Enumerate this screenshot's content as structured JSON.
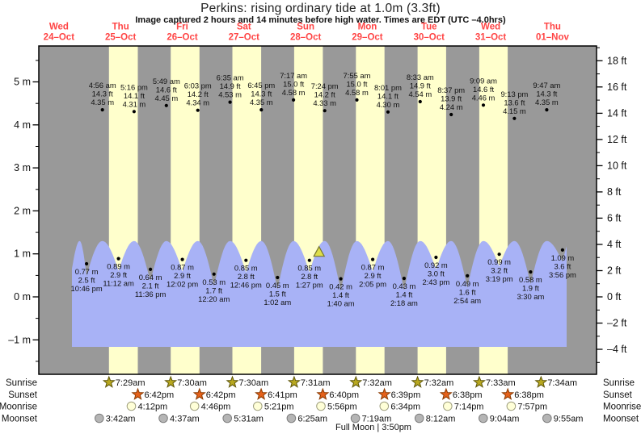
{
  "page": {
    "title": "Perkins: rising  ordinary tide at 1.0m (3.3ft)",
    "subtitle": "Image captured 2 hours and 14 minutes before high water. Times are EDT (UTC –4.0hrs)"
  },
  "colors": {
    "night_band": "#999999",
    "day_band": "#ffffcc",
    "water": "#a8b2f6",
    "day_label": "#ff4545",
    "sunrise_icon": "#b8a820",
    "sunset_icon": "#e5611a",
    "moonrise_icon": "#ffffd8",
    "moonset_icon": "#b5b5b5",
    "marker": "#dede4a",
    "annotation_text": "#111111"
  },
  "chart_data": {
    "type": "area",
    "title": "Perkins: rising  ordinary tide at 1.0m (3.3ft)",
    "subtitle": "Image captured 2 hours and 14 minutes before high water. Times are EDT (UTC –4.0hrs)",
    "days": [
      {
        "name": "Wed",
        "date": "24–Oct"
      },
      {
        "name": "Thu",
        "date": "25–Oct"
      },
      {
        "name": "Fri",
        "date": "26–Oct"
      },
      {
        "name": "Sat",
        "date": "27–Oct"
      },
      {
        "name": "Sun",
        "date": "28–Oct"
      },
      {
        "name": "Mon",
        "date": "29–Oct"
      },
      {
        "name": "Tue",
        "date": "30–Oct"
      },
      {
        "name": "Wed",
        "date": "31–Oct"
      },
      {
        "name": "Thu",
        "date": "01–Nov"
      }
    ],
    "y_axis": {
      "left_unit": "m",
      "left_major_ticks": [
        5,
        4,
        3,
        2,
        1,
        0,
        -1
      ],
      "left_minor_ticks": [
        5.5,
        4.5,
        3.5,
        2.5,
        1.5,
        0.5,
        -0.5,
        -1.5
      ],
      "right_unit": "ft",
      "right_major_ticks": [
        18,
        16,
        14,
        12,
        10,
        8,
        6,
        4,
        2,
        0,
        -2,
        -4
      ],
      "right_minor_ticks": [
        19,
        17,
        15,
        13,
        11,
        9,
        7,
        5,
        3,
        1,
        -1,
        -3,
        -5
      ],
      "ylim_m": [
        -1.5,
        5.8
      ]
    },
    "tide_events": [
      {
        "kind": "low",
        "day": 0,
        "time": "10:46 pm",
        "m": 0.77,
        "ft": 2.5
      },
      {
        "kind": "high",
        "day": 1,
        "time": "4:56 am",
        "m": 4.35,
        "ft": 14.3
      },
      {
        "kind": "low",
        "day": 1,
        "time": "11:12 am",
        "m": 0.89,
        "ft": 2.9
      },
      {
        "kind": "high",
        "day": 1,
        "time": "5:16 pm",
        "m": 4.31,
        "ft": 14.1
      },
      {
        "kind": "low",
        "day": 1,
        "time": "11:36 pm",
        "m": 0.64,
        "ft": 2.1
      },
      {
        "kind": "high",
        "day": 2,
        "time": "5:49 am",
        "m": 4.45,
        "ft": 14.6
      },
      {
        "kind": "low",
        "day": 2,
        "time": "12:02 pm",
        "m": 0.87,
        "ft": 2.9
      },
      {
        "kind": "high",
        "day": 2,
        "time": "6:03 pm",
        "m": 4.34,
        "ft": 14.2
      },
      {
        "kind": "low",
        "day": 3,
        "time": "12:20 am",
        "m": 0.53,
        "ft": 1.7
      },
      {
        "kind": "high",
        "day": 3,
        "time": "6:35 am",
        "m": 4.53,
        "ft": 14.9
      },
      {
        "kind": "low",
        "day": 3,
        "time": "12:46 pm",
        "m": 0.85,
        "ft": 2.8
      },
      {
        "kind": "high",
        "day": 3,
        "time": "6:45 pm",
        "m": 4.35,
        "ft": 14.3
      },
      {
        "kind": "low",
        "day": 4,
        "time": "1:02 am",
        "m": 0.45,
        "ft": 1.5
      },
      {
        "kind": "high",
        "day": 4,
        "time": "7:17 am",
        "m": 4.58,
        "ft": 15.0
      },
      {
        "kind": "low",
        "day": 4,
        "time": "1:27 pm",
        "m": 0.85,
        "ft": 2.8
      },
      {
        "kind": "high",
        "day": 4,
        "time": "7:24 pm",
        "m": 4.33,
        "ft": 14.2
      },
      {
        "kind": "low",
        "day": 5,
        "time": "1:40 am",
        "m": 0.42,
        "ft": 1.4
      },
      {
        "kind": "high",
        "day": 5,
        "time": "7:55 am",
        "m": 4.58,
        "ft": 15.0
      },
      {
        "kind": "low",
        "day": 5,
        "time": "2:05 pm",
        "m": 0.87,
        "ft": 2.9
      },
      {
        "kind": "high",
        "day": 5,
        "time": "8:01 pm",
        "m": 4.3,
        "ft": 14.1
      },
      {
        "kind": "low",
        "day": 6,
        "time": "2:18 am",
        "m": 0.43,
        "ft": 1.4
      },
      {
        "kind": "high",
        "day": 6,
        "time": "8:33 am",
        "m": 4.54,
        "ft": 14.9
      },
      {
        "kind": "low",
        "day": 6,
        "time": "2:43 pm",
        "m": 0.92,
        "ft": 3.0
      },
      {
        "kind": "high",
        "day": 6,
        "time": "8:37 pm",
        "m": 4.24,
        "ft": 13.9
      },
      {
        "kind": "low",
        "day": 7,
        "time": "2:54 am",
        "m": 0.49,
        "ft": 1.6
      },
      {
        "kind": "high",
        "day": 7,
        "time": "9:09 am",
        "m": 4.46,
        "ft": 14.6
      },
      {
        "kind": "low",
        "day": 7,
        "time": "3:19 pm",
        "m": 0.99,
        "ft": 3.2
      },
      {
        "kind": "high",
        "day": 7,
        "time": "9:13 pm",
        "m": 4.15,
        "ft": 13.6
      },
      {
        "kind": "low",
        "day": 8,
        "time": "3:30 am",
        "m": 0.58,
        "ft": 1.9
      },
      {
        "kind": "high",
        "day": 8,
        "time": "9:47 am",
        "m": 4.35,
        "ft": 14.3
      },
      {
        "kind": "low",
        "day": 8,
        "time": "3:56 pm",
        "m": 1.09,
        "ft": 3.6
      }
    ],
    "now_marker": {
      "shape": "triangle-up",
      "day": 4,
      "hour": 17.2,
      "height_m": 1.0
    }
  },
  "astro": {
    "rows": [
      {
        "label": "Sunrise",
        "icon": "sunrise-icon",
        "events": [
          {
            "day": 1,
            "time": "7:29am"
          },
          {
            "day": 2,
            "time": "7:30am"
          },
          {
            "day": 3,
            "time": "7:30am"
          },
          {
            "day": 4,
            "time": "7:31am"
          },
          {
            "day": 5,
            "time": "7:32am"
          },
          {
            "day": 6,
            "time": "7:32am"
          },
          {
            "day": 7,
            "time": "7:33am"
          },
          {
            "day": 8,
            "time": "7:34am"
          }
        ]
      },
      {
        "label": "Sunset",
        "icon": "sunset-icon",
        "events": [
          {
            "day": 1,
            "time": "6:42pm"
          },
          {
            "day": 2,
            "time": "6:42pm"
          },
          {
            "day": 3,
            "time": "6:41pm"
          },
          {
            "day": 4,
            "time": "6:40pm"
          },
          {
            "day": 5,
            "time": "6:39pm"
          },
          {
            "day": 6,
            "time": "6:38pm"
          },
          {
            "day": 7,
            "time": "6:38pm"
          }
        ]
      },
      {
        "label": "Moonrise",
        "icon": "moonrise-icon",
        "events": [
          {
            "day": 1,
            "time": "4:12pm"
          },
          {
            "day": 2,
            "time": "4:46pm"
          },
          {
            "day": 3,
            "time": "5:21pm"
          },
          {
            "day": 4,
            "time": "5:56pm"
          },
          {
            "day": 5,
            "time": "6:34pm"
          },
          {
            "day": 6,
            "time": "7:14pm"
          },
          {
            "day": 7,
            "time": "7:57pm"
          }
        ]
      },
      {
        "label": "Moonset",
        "icon": "moonset-icon",
        "events": [
          {
            "day": 1,
            "time": "3:42am"
          },
          {
            "day": 2,
            "time": "4:37am"
          },
          {
            "day": 3,
            "time": "5:31am"
          },
          {
            "day": 4,
            "time": "6:25am"
          },
          {
            "day": 5,
            "time": "7:19am"
          },
          {
            "day": 6,
            "time": "8:12am"
          },
          {
            "day": 7,
            "time": "9:04am"
          },
          {
            "day": 8,
            "time": "9:55am"
          }
        ]
      }
    ],
    "full_moon_label": "Full Moon | 3:50pm"
  }
}
